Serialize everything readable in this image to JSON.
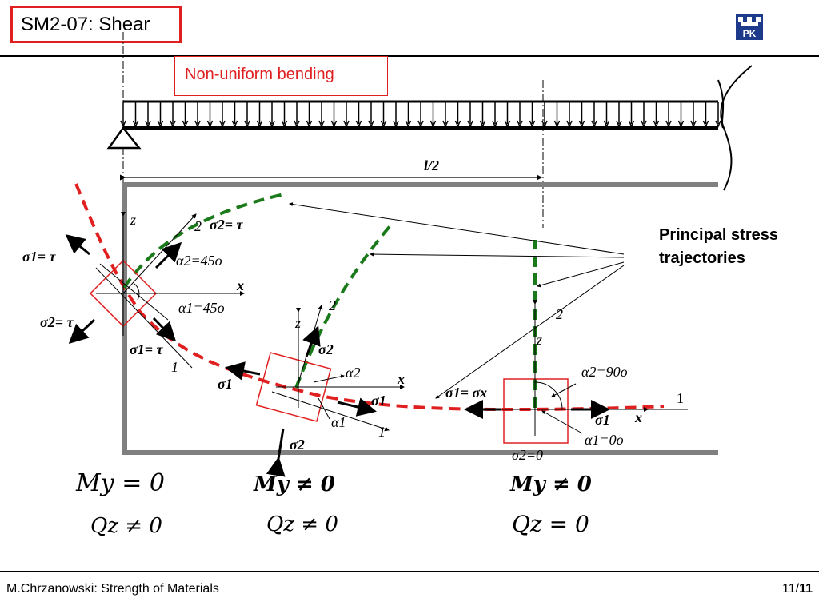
{
  "slide": {
    "title": "SM2-07: Shear",
    "subtitle": "Non-uniform bending",
    "footer_left": "M.Chrzanowski: Strength of Materials",
    "page_current": "11/",
    "page_total": "11",
    "logo_text": "PK"
  },
  "diagram": {
    "span_label": "l/2",
    "trajectories_label": "Principal stress trajectories",
    "axis_z": "z",
    "axis_x": "x",
    "dir_1": "1",
    "dir_2": "2",
    "left_element": {
      "sigma1_top": "σ1= τ",
      "sigma2_left": "σ2= τ",
      "sigma2_top": "σ2= τ",
      "alpha2": "α2=45o",
      "alpha1": "α1=45o",
      "sigma1_bottom": "σ1= τ"
    },
    "mid_element": {
      "sigma1_left": "σ1",
      "sigma2_top": "σ2",
      "alpha2": "α2",
      "sigma1_right": "σ1",
      "alpha1": "α1",
      "sigma2_bottom": "σ2"
    },
    "right_element": {
      "sigma1_eq": "σ1= σx",
      "alpha2": "α2=90o",
      "sigma1": "σ1",
      "alpha1": "α1=0o",
      "sigma2": "σ2=0"
    },
    "conditions": [
      {
        "M": "My = 0",
        "Q": "Qz ≠ 0"
      },
      {
        "M": "My ≠ 0",
        "Q": "Qz ≠ 0"
      },
      {
        "M": "My ≠ 0",
        "Q": "Qz = 0"
      }
    ]
  },
  "colors": {
    "accent_red": "#e02020",
    "trajectory_red": "#e02020",
    "trajectory_green": "#1a7a1a",
    "beam_gray": "#808080"
  }
}
